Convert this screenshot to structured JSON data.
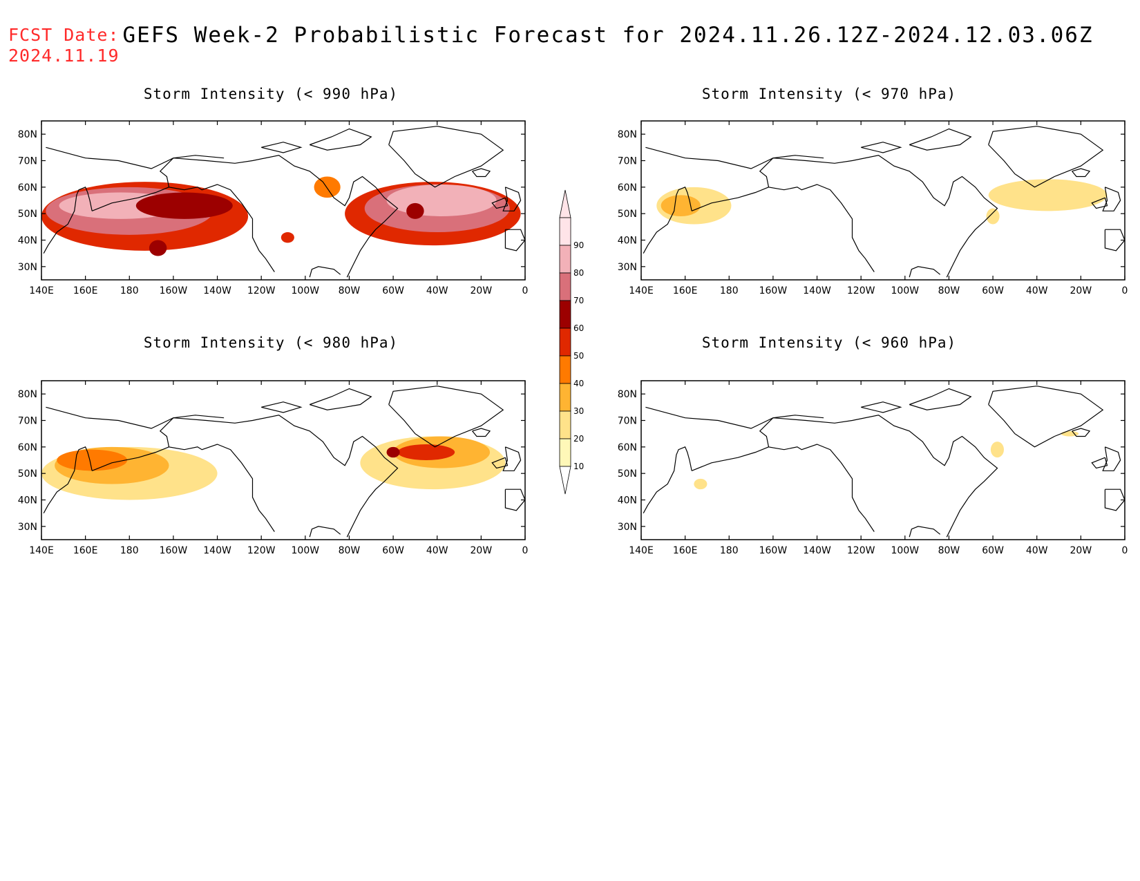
{
  "header": {
    "fcst_label": "FCST Date:",
    "fcst_date": "2024.11.19",
    "title": "GEFS Week-2 Probabilistic Forecast for 2024.11.26.12Z-2024.12.03.06Z"
  },
  "axes": {
    "lon_labels": [
      "140E",
      "160E",
      "180",
      "160W",
      "140W",
      "120W",
      "100W",
      "80W",
      "60W",
      "40W",
      "20W",
      "0"
    ],
    "lat_labels": [
      "80N",
      "70N",
      "60N",
      "50N",
      "40N",
      "30N"
    ],
    "lon_range_deg_east": [
      140,
      360
    ],
    "lat_range": [
      25,
      85
    ]
  },
  "colorbar": {
    "levels": [
      "10",
      "20",
      "30",
      "40",
      "50",
      "60",
      "70",
      "80",
      "90"
    ],
    "colors": [
      "#fff8b8",
      "#ffe28a",
      "#ffb432",
      "#ff7a00",
      "#e02800",
      "#9c0000",
      "#d9707a",
      "#f2b1b8",
      "#ffe4e8"
    ]
  },
  "panels": [
    {
      "id": "p990",
      "title": "Storm Intensity (< 990 hPa)",
      "blobs": [
        {
          "lon": 187,
          "lat": 49,
          "rx": 47,
          "ry": 13,
          "level": 4
        },
        {
          "lon": 180,
          "lat": 51,
          "rx": 38,
          "ry": 9,
          "level": 6
        },
        {
          "lon": 176,
          "lat": 53,
          "rx": 28,
          "ry": 5,
          "level": 7
        },
        {
          "lon": 205,
          "lat": 53,
          "rx": 22,
          "ry": 5,
          "level": 5
        },
        {
          "lon": 193,
          "lat": 37,
          "rx": 4,
          "ry": 3,
          "level": 5
        },
        {
          "lon": 318,
          "lat": 50,
          "rx": 40,
          "ry": 12,
          "level": 4
        },
        {
          "lon": 320,
          "lat": 52,
          "rx": 33,
          "ry": 9,
          "level": 6
        },
        {
          "lon": 322,
          "lat": 55,
          "rx": 25,
          "ry": 6,
          "level": 7
        },
        {
          "lon": 310,
          "lat": 51,
          "rx": 4,
          "ry": 3,
          "level": 5
        },
        {
          "lon": 270,
          "lat": 60,
          "rx": 6,
          "ry": 4,
          "level": 3
        },
        {
          "lon": 252,
          "lat": 41,
          "rx": 3,
          "ry": 2,
          "level": 4
        }
      ]
    },
    {
      "id": "p970",
      "title": "Storm Intensity (< 970 hPa)",
      "blobs": [
        {
          "lon": 164,
          "lat": 53,
          "rx": 17,
          "ry": 7,
          "level": 1
        },
        {
          "lon": 158,
          "lat": 53,
          "rx": 9,
          "ry": 4,
          "level": 2
        },
        {
          "lon": 325,
          "lat": 57,
          "rx": 27,
          "ry": 6,
          "level": 1
        },
        {
          "lon": 300,
          "lat": 49,
          "rx": 3,
          "ry": 3,
          "level": 1
        }
      ]
    },
    {
      "id": "p980",
      "title": "Storm Intensity (< 980 hPa)",
      "blobs": [
        {
          "lon": 180,
          "lat": 50,
          "rx": 40,
          "ry": 10,
          "level": 1
        },
        {
          "lon": 172,
          "lat": 53,
          "rx": 26,
          "ry": 7,
          "level": 2
        },
        {
          "lon": 163,
          "lat": 55,
          "rx": 16,
          "ry": 4,
          "level": 3
        },
        {
          "lon": 318,
          "lat": 54,
          "rx": 33,
          "ry": 10,
          "level": 1
        },
        {
          "lon": 322,
          "lat": 58,
          "rx": 22,
          "ry": 6,
          "level": 2
        },
        {
          "lon": 315,
          "lat": 58,
          "rx": 13,
          "ry": 3,
          "level": 4
        },
        {
          "lon": 300,
          "lat": 58,
          "rx": 3,
          "ry": 2,
          "level": 5
        }
      ]
    },
    {
      "id": "p960",
      "title": "Storm Intensity (< 960 hPa)",
      "blobs": [
        {
          "lon": 167,
          "lat": 46,
          "rx": 3,
          "ry": 2,
          "level": 1
        },
        {
          "lon": 335,
          "lat": 65,
          "rx": 4,
          "ry": 1,
          "level": 1
        },
        {
          "lon": 302,
          "lat": 59,
          "rx": 3,
          "ry": 3,
          "level": 1
        }
      ]
    }
  ],
  "coastline": [
    [
      [
        142,
        75
      ],
      [
        160,
        71
      ],
      [
        175,
        70
      ],
      [
        190,
        67
      ],
      [
        200,
        71
      ],
      [
        215,
        70
      ],
      [
        228,
        69
      ],
      [
        236,
        70
      ],
      [
        248,
        72
      ],
      [
        255,
        68
      ],
      [
        262,
        66
      ],
      [
        268,
        62
      ],
      [
        273,
        56
      ],
      [
        278,
        53
      ],
      [
        280,
        56
      ],
      [
        282,
        62
      ],
      [
        286,
        64
      ],
      [
        292,
        60
      ],
      [
        296,
        56
      ],
      [
        302,
        52
      ],
      [
        296,
        47
      ],
      [
        292,
        44
      ],
      [
        289,
        41
      ],
      [
        285,
        36
      ],
      [
        282,
        31
      ],
      [
        279,
        26
      ]
    ],
    [
      [
        262,
        26
      ],
      [
        263,
        29
      ],
      [
        266,
        30
      ],
      [
        273,
        29
      ],
      [
        276,
        27
      ]
    ],
    [
      [
        223,
        71
      ],
      [
        210,
        72
      ],
      [
        200,
        71
      ],
      [
        194,
        66
      ],
      [
        197,
        64
      ],
      [
        198,
        60
      ],
      [
        205,
        59
      ],
      [
        211,
        60
      ],
      [
        213,
        59
      ],
      [
        220,
        61
      ],
      [
        226,
        59
      ],
      [
        231,
        54
      ],
      [
        236,
        48
      ],
      [
        236,
        41
      ],
      [
        239,
        36
      ],
      [
        242,
        33
      ],
      [
        246,
        28
      ]
    ],
    [
      [
        198,
        60
      ],
      [
        192,
        58
      ],
      [
        184,
        56
      ],
      [
        172,
        54
      ],
      [
        163,
        51
      ]
    ],
    [
      [
        163,
        51
      ],
      [
        162,
        55
      ],
      [
        161,
        58
      ],
      [
        160,
        60
      ],
      [
        157,
        59
      ],
      [
        156,
        57
      ],
      [
        155,
        51
      ],
      [
        152,
        46
      ],
      [
        147,
        43
      ],
      [
        143,
        38
      ],
      [
        141,
        35
      ]
    ],
    [
      [
        298,
        76
      ],
      [
        300,
        81
      ],
      [
        320,
        83
      ],
      [
        340,
        80
      ],
      [
        350,
        74
      ],
      [
        340,
        68
      ],
      [
        328,
        64
      ],
      [
        319,
        60
      ],
      [
        310,
        65
      ],
      [
        305,
        70
      ],
      [
        298,
        76
      ]
    ],
    [
      [
        336,
        66
      ],
      [
        338,
        64
      ],
      [
        342,
        64
      ],
      [
        344,
        66
      ],
      [
        340,
        67
      ],
      [
        336,
        66
      ]
    ],
    [
      [
        351,
        60
      ],
      [
        357,
        58
      ],
      [
        358,
        55
      ],
      [
        355,
        51
      ],
      [
        350,
        51
      ],
      [
        352,
        55
      ],
      [
        351,
        60
      ]
    ],
    [
      [
        351,
        56
      ],
      [
        352,
        53
      ],
      [
        347,
        52
      ],
      [
        345,
        54
      ],
      [
        351,
        56
      ]
    ],
    [
      [
        351,
        44
      ],
      [
        358,
        44
      ],
      [
        360,
        40
      ],
      [
        356,
        36
      ],
      [
        351,
        37
      ],
      [
        351,
        44
      ]
    ],
    [
      [
        262,
        76
      ],
      [
        272,
        79
      ],
      [
        280,
        82
      ],
      [
        290,
        79
      ],
      [
        285,
        76
      ],
      [
        278,
        75
      ],
      [
        270,
        74
      ],
      [
        262,
        76
      ]
    ],
    [
      [
        240,
        75
      ],
      [
        250,
        77
      ],
      [
        258,
        75
      ],
      [
        250,
        73
      ],
      [
        240,
        75
      ]
    ]
  ]
}
